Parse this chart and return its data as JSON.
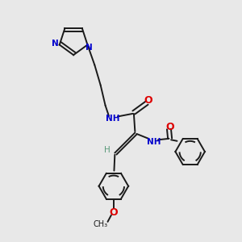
{
  "bg_color": "#e8e8e8",
  "bond_color": "#1a1a1a",
  "N_color": "#0000cd",
  "O_color": "#dd0000",
  "H_color": "#5a9a7a",
  "figsize": [
    3.0,
    3.0
  ],
  "dpi": 100,
  "lw": 1.4,
  "fs": 7.5,
  "xlim": [
    0,
    10
  ],
  "ylim": [
    0,
    10
  ]
}
